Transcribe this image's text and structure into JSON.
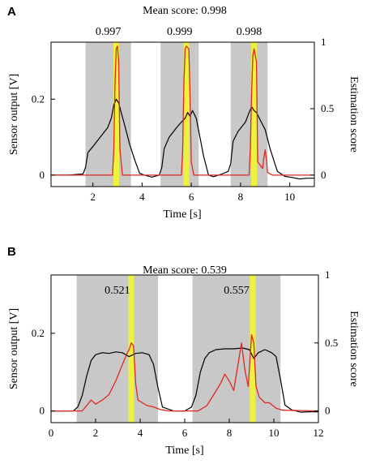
{
  "chart_data": [
    {
      "type": "line",
      "panel": "A",
      "title": "Mean score: 0.998",
      "xlabel": "Time [s]",
      "ylabel": "Sensor output [V]",
      "ylabel_right": "Estimation score",
      "xlim": [
        0.3,
        11.0
      ],
      "ylim": [
        -0.03,
        0.35
      ],
      "ylim_right": [
        -0.086,
        1.0
      ],
      "xticks": [
        2,
        4,
        6,
        8,
        10
      ],
      "yticks": [
        0,
        0.2
      ],
      "yticks_right": [
        0,
        0.5,
        1
      ],
      "segments": [
        {
          "start": 1.7,
          "end": 3.55,
          "score_label": "0.997",
          "highlight": 2.95
        },
        {
          "start": 4.75,
          "end": 6.3,
          "score_label": "0.999",
          "highlight": 5.8
        },
        {
          "start": 7.6,
          "end": 9.1,
          "score_label": "0.998",
          "highlight": 8.55
        }
      ],
      "series": [
        {
          "axis": "left",
          "color": "#000000",
          "x": [
            0.3,
            1.0,
            1.6,
            1.7,
            1.8,
            2.0,
            2.3,
            2.6,
            2.75,
            2.85,
            2.95,
            3.05,
            3.15,
            3.3,
            3.5,
            3.7,
            3.9,
            4.1,
            4.4,
            4.7,
            4.8,
            4.9,
            5.1,
            5.4,
            5.6,
            5.75,
            5.85,
            5.95,
            6.05,
            6.2,
            6.35,
            6.5,
            6.7,
            6.9,
            7.2,
            7.5,
            7.6,
            7.7,
            7.9,
            8.2,
            8.35,
            8.45,
            8.55,
            8.65,
            8.8,
            9.0,
            9.2,
            9.5,
            9.8,
            10.1,
            10.4,
            10.7,
            11.0
          ],
          "y": [
            0.0,
            0.0,
            0.003,
            0.02,
            0.06,
            0.075,
            0.1,
            0.125,
            0.15,
            0.185,
            0.2,
            0.19,
            0.165,
            0.13,
            0.08,
            0.04,
            0.005,
            0.0,
            -0.005,
            0.0,
            0.02,
            0.07,
            0.1,
            0.125,
            0.14,
            0.15,
            0.165,
            0.155,
            0.17,
            0.15,
            0.1,
            0.05,
            0.0,
            -0.004,
            0.002,
            0.01,
            0.03,
            0.09,
            0.115,
            0.14,
            0.165,
            0.18,
            0.17,
            0.165,
            0.145,
            0.12,
            0.07,
            0.01,
            -0.003,
            -0.006,
            -0.01,
            -0.008,
            -0.008
          ]
        },
        {
          "axis": "right",
          "color": "#e0281e",
          "x": [
            0.3,
            2.8,
            2.85,
            2.9,
            2.95,
            3.0,
            3.05,
            3.1,
            3.2,
            5.6,
            5.65,
            5.7,
            5.75,
            5.8,
            5.9,
            5.95,
            6.0,
            6.1,
            8.35,
            8.4,
            8.45,
            8.5,
            8.55,
            8.6,
            8.65,
            8.7,
            8.9,
            8.95,
            9.0,
            9.05,
            9.1,
            9.3,
            11.0
          ],
          "y": [
            0.0,
            0.0,
            0.2,
            0.7,
            0.95,
            0.97,
            0.85,
            0.2,
            0.0,
            0.0,
            0.2,
            0.7,
            0.95,
            0.97,
            0.95,
            0.6,
            0.1,
            0.0,
            0.0,
            0.2,
            0.6,
            0.9,
            0.95,
            0.9,
            0.85,
            0.1,
            0.05,
            0.13,
            0.19,
            0.12,
            0.02,
            0.0,
            0.0
          ]
        }
      ]
    },
    {
      "type": "line",
      "panel": "B",
      "title": "Mean score: 0.539",
      "xlabel": "Time [s]",
      "ylabel": "Sensor output [V]",
      "ylabel_right": "Estimation score",
      "xlim": [
        0,
        12
      ],
      "ylim": [
        -0.03,
        0.35
      ],
      "ylim_right": [
        -0.086,
        1.0
      ],
      "xticks": [
        0,
        2,
        4,
        6,
        8,
        10,
        12
      ],
      "yticks": [
        0,
        0.2
      ],
      "yticks_right": [
        0,
        0.5,
        1
      ],
      "segments": [
        {
          "start": 1.15,
          "end": 4.8,
          "score_label": "0.521",
          "highlight": 3.6
        },
        {
          "start": 6.35,
          "end": 10.3,
          "score_label": "0.557",
          "highlight": 9.05
        }
      ],
      "series": [
        {
          "axis": "left",
          "color": "#000000",
          "x": [
            0,
            1.0,
            1.2,
            1.4,
            1.6,
            1.8,
            2.0,
            2.3,
            2.6,
            2.9,
            3.2,
            3.5,
            3.8,
            4.1,
            4.4,
            4.6,
            4.8,
            5.0,
            5.5,
            6.0,
            6.3,
            6.5,
            6.7,
            6.9,
            7.1,
            7.4,
            7.8,
            8.2,
            8.6,
            8.9,
            9.1,
            9.3,
            9.6,
            9.9,
            10.1,
            10.3,
            10.5,
            10.8,
            11.2,
            11.6,
            12.0
          ],
          "y": [
            0.0,
            0.0,
            0.01,
            0.04,
            0.09,
            0.13,
            0.145,
            0.15,
            0.148,
            0.152,
            0.15,
            0.14,
            0.148,
            0.15,
            0.145,
            0.12,
            0.06,
            0.01,
            0.0,
            0.0,
            0.01,
            0.04,
            0.1,
            0.135,
            0.15,
            0.158,
            0.16,
            0.16,
            0.162,
            0.158,
            0.135,
            0.15,
            0.158,
            0.15,
            0.14,
            0.08,
            0.015,
            0.003,
            -0.003,
            -0.002,
            -0.002
          ]
        },
        {
          "axis": "right",
          "color": "#e0281e",
          "x": [
            0,
            1.4,
            1.8,
            2.0,
            2.3,
            2.6,
            2.9,
            3.1,
            3.3,
            3.4,
            3.5,
            3.6,
            3.7,
            3.75,
            3.8,
            3.9,
            4.1,
            4.3,
            4.6,
            4.9,
            5.3,
            6.6,
            7.0,
            7.3,
            7.6,
            7.8,
            8.0,
            8.2,
            8.4,
            8.55,
            8.7,
            8.85,
            9.0,
            9.1,
            9.2,
            9.35,
            9.6,
            9.8,
            10.1,
            10.4,
            12.0
          ],
          "y": [
            0.0,
            0.0,
            0.08,
            0.05,
            0.08,
            0.12,
            0.22,
            0.3,
            0.38,
            0.42,
            0.45,
            0.5,
            0.48,
            0.35,
            0.2,
            0.08,
            0.06,
            0.04,
            0.03,
            0.01,
            0.0,
            0.0,
            0.04,
            0.12,
            0.2,
            0.27,
            0.22,
            0.15,
            0.35,
            0.5,
            0.3,
            0.18,
            0.56,
            0.5,
            0.18,
            0.1,
            0.06,
            0.06,
            0.02,
            0.005,
            0.0
          ]
        }
      ]
    }
  ]
}
